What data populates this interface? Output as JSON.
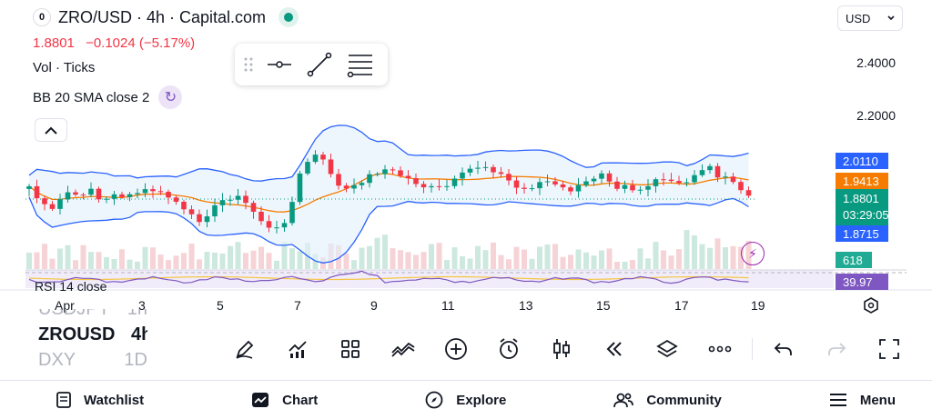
{
  "header": {
    "logo_glyph": "0",
    "title": "ZRO/USD · 4h · Capital.com",
    "price": "1.8801",
    "change": "−0.1024 (−5.17%)"
  },
  "indicators": {
    "vol": "Vol · Ticks",
    "bb": "BB 20 SMA close 2",
    "rsi": "RSI 14 close"
  },
  "currency": {
    "selected": "USD"
  },
  "y_axis": {
    "labels": [
      "2.4000",
      "2.2000"
    ]
  },
  "price_badges": {
    "bb_upper": "2.0110",
    "bb_basis": "1.9413",
    "last_price": "1.8801",
    "countdown": "03:29:05",
    "bb_lower": "1.8715",
    "volume": "618",
    "rsi": "39.97"
  },
  "x_axis": {
    "labels": [
      "Apr",
      "3",
      "5",
      "7",
      "9",
      "11",
      "13",
      "15",
      "17",
      "19"
    ]
  },
  "symbols": {
    "prev": {
      "symbol": "USDJPY",
      "interval": "1h"
    },
    "current": {
      "symbol": "ZROUSD",
      "interval": "4h"
    },
    "next": {
      "symbol": "DXY",
      "interval": "1D"
    }
  },
  "bottom_nav": {
    "watchlist": "Watchlist",
    "chart": "Chart",
    "explore": "Explore",
    "community": "Community",
    "menu": "Menu"
  },
  "colors": {
    "up": "#089981",
    "down": "#f23645",
    "bb_band": "#2962ff",
    "bb_basis": "#f57c00",
    "rsi": "#7e57c2",
    "rsi_ma": "#f5c542"
  },
  "icons": [
    "drawing-pen-icon",
    "indicators-icon",
    "layouts-icon",
    "compare-icon",
    "add-icon",
    "replay-icon",
    "candles-icon",
    "rewind-icon",
    "layers-icon",
    "more-icon",
    "undo-icon",
    "redo-icon",
    "fullscreen-icon",
    "lightning-icon",
    "settings-hexagon-icon"
  ]
}
